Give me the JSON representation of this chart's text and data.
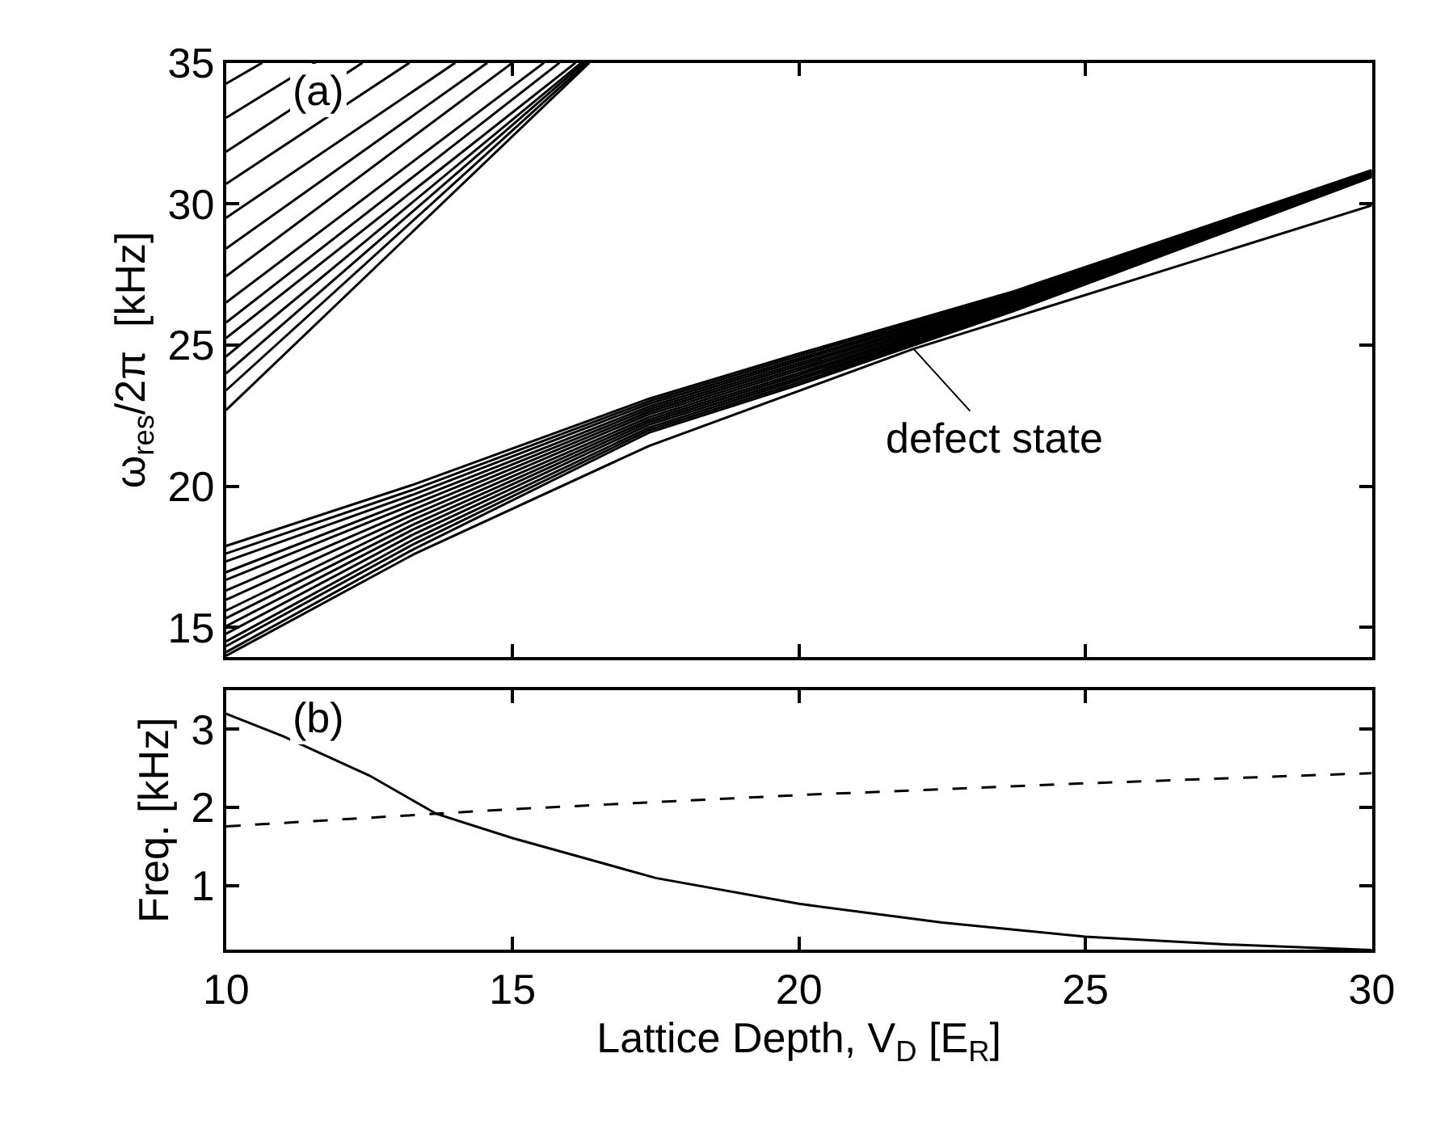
{
  "chart_data": [
    {
      "type": "line",
      "ylabel": "ω$_{res}$/2π  [kHz]",
      "xlim": [
        10,
        30
      ],
      "xticks": [
        10,
        15,
        20,
        25,
        30
      ],
      "ylim": [
        13.95,
        35
      ],
      "yticks": [
        15,
        20,
        25,
        30,
        35
      ],
      "tick_labels": "y",
      "marker": "none",
      "line_style": "solid",
      "annotations": [
        "(a)",
        {
          "text": "defect state",
          "x": 22,
          "y": 24.87
        }
      ],
      "series": [
        {
          "color": "#000000",
          "x": [
            10,
            10.63
          ],
          "values": [
            34.26,
            35
          ]
        },
        {
          "color": "#000000",
          "x": [
            10,
            11.56
          ],
          "values": [
            33.05,
            35
          ]
        },
        {
          "color": "#000000",
          "x": [
            10,
            12.38
          ],
          "values": [
            31.85,
            35
          ]
        },
        {
          "color": "#000000",
          "x": [
            10,
            13.2
          ],
          "values": [
            30.71,
            35
          ]
        },
        {
          "color": "#000000",
          "x": [
            10,
            14.0
          ],
          "values": [
            29.51,
            35
          ]
        },
        {
          "color": "#000000",
          "x": [
            10,
            14.56
          ],
          "values": [
            28.42,
            35
          ]
        },
        {
          "color": "#000000",
          "x": [
            10,
            15.0
          ],
          "values": [
            27.44,
            35
          ]
        },
        {
          "color": "#000000",
          "x": [
            10,
            15.55
          ],
          "values": [
            26.51,
            35
          ]
        },
        {
          "color": "#000000",
          "x": [
            10,
            15.82
          ],
          "values": [
            25.8,
            35
          ]
        },
        {
          "color": "#000000",
          "x": [
            10,
            16.1
          ],
          "values": [
            25.25,
            35
          ]
        },
        {
          "color": "#000000",
          "x": [
            10,
            16.2
          ],
          "values": [
            24.6,
            35
          ]
        },
        {
          "color": "#000000",
          "x": [
            10,
            16.25
          ],
          "values": [
            24.0,
            35
          ]
        },
        {
          "color": "#000000",
          "x": [
            10,
            16.3
          ],
          "values": [
            23.4,
            35
          ]
        },
        {
          "color": "#000000",
          "x": [
            10,
            16.34
          ],
          "values": [
            22.7,
            35
          ]
        },
        {
          "color": "#000000",
          "x": [
            10,
            13.28,
            17.38,
            20,
            23.74,
            30
          ],
          "values": [
            17.89,
            20.07,
            23.1,
            24.7,
            26.9,
            31.2
          ]
        },
        {
          "color": "#000000",
          "x": [
            10,
            13.28,
            17.38,
            20,
            23.74,
            30
          ],
          "values": [
            17.62,
            19.89,
            23.01,
            24.62,
            26.85,
            31.18
          ]
        },
        {
          "color": "#000000",
          "x": [
            10,
            13.28,
            17.38,
            20,
            23.74,
            30
          ],
          "values": [
            17.34,
            19.72,
            22.92,
            24.53,
            26.79,
            31.16
          ]
        },
        {
          "color": "#000000",
          "x": [
            10,
            13.28,
            17.38,
            20,
            23.74,
            30
          ],
          "values": [
            16.96,
            19.54,
            22.82,
            24.45,
            26.74,
            31.14
          ]
        },
        {
          "color": "#000000",
          "x": [
            10,
            13.28,
            17.38,
            20,
            23.74,
            30
          ],
          "values": [
            16.69,
            19.37,
            22.73,
            24.36,
            26.68,
            31.12
          ]
        },
        {
          "color": "#000000",
          "x": [
            10,
            13.28,
            17.38,
            20,
            23.74,
            30
          ],
          "values": [
            16.31,
            19.19,
            22.64,
            24.28,
            26.63,
            31.1
          ]
        },
        {
          "color": "#000000",
          "x": [
            10,
            13.28,
            17.38,
            20,
            23.74,
            30
          ],
          "values": [
            15.98,
            19.01,
            22.55,
            24.19,
            26.58,
            31.08
          ]
        },
        {
          "color": "#000000",
          "x": [
            10,
            13.28,
            17.38,
            20,
            23.74,
            30
          ],
          "values": [
            15.6,
            18.84,
            22.45,
            24.11,
            26.52,
            31.07
          ]
        },
        {
          "color": "#000000",
          "x": [
            10,
            13.28,
            17.38,
            20,
            23.74,
            30
          ],
          "values": [
            15.33,
            18.66,
            22.36,
            24.02,
            26.47,
            31.05
          ]
        },
        {
          "color": "#000000",
          "x": [
            10,
            13.28,
            17.38,
            20,
            23.74,
            30
          ],
          "values": [
            15.05,
            18.49,
            22.27,
            23.94,
            26.42,
            31.03
          ]
        },
        {
          "color": "#000000",
          "x": [
            10,
            13.28,
            17.38,
            20,
            23.74,
            30
          ],
          "values": [
            14.78,
            18.31,
            22.18,
            23.85,
            26.36,
            31.01
          ]
        },
        {
          "color": "#000000",
          "x": [
            10,
            13.28,
            17.38,
            20,
            23.74,
            30
          ],
          "values": [
            14.51,
            18.13,
            22.08,
            23.77,
            26.31,
            30.99
          ]
        },
        {
          "color": "#000000",
          "x": [
            10,
            13.28,
            17.38,
            20,
            23.74,
            30
          ],
          "values": [
            14.34,
            17.96,
            21.99,
            23.68,
            26.25,
            30.97
          ]
        },
        {
          "color": "#000000",
          "x": [
            10,
            13.28,
            17.38,
            20,
            23.74,
            30
          ],
          "values": [
            14.13,
            17.78,
            21.9,
            23.6,
            26.2,
            30.95
          ]
        },
        {
          "color": "#000000",
          "x": [
            10,
            13.28,
            17.38,
            22,
            30
          ],
          "values": [
            14.0,
            17.6,
            21.43,
            24.87,
            29.95
          ]
        }
      ]
    },
    {
      "type": "line",
      "xlabel": "Lattice Depth, V$_{D}$ [E$_{R}$]",
      "ylabel": "Freq. [kHz]",
      "xlim": [
        10,
        30
      ],
      "xticks": [
        10,
        15,
        20,
        25,
        30
      ],
      "ylim": [
        0.18,
        3.5
      ],
      "yticks": [
        1,
        2,
        3
      ],
      "marker": "none",
      "annotations": [
        "(b)"
      ],
      "series": [
        {
          "color": "#000000",
          "line_style": "solid",
          "x": [
            10,
            11,
            12.5,
            13.67,
            15,
            17.5,
            20,
            22.5,
            25,
            27.5,
            30
          ],
          "values": [
            3.2,
            2.91,
            2.41,
            1.92,
            1.61,
            1.1,
            0.77,
            0.53,
            0.35,
            0.25,
            0.18
          ]
        },
        {
          "color": "#000000",
          "line_style": "dashed",
          "x": [
            10,
            15,
            20,
            25,
            30
          ],
          "values": [
            1.76,
            1.98,
            2.16,
            2.31,
            2.44
          ]
        }
      ]
    }
  ]
}
